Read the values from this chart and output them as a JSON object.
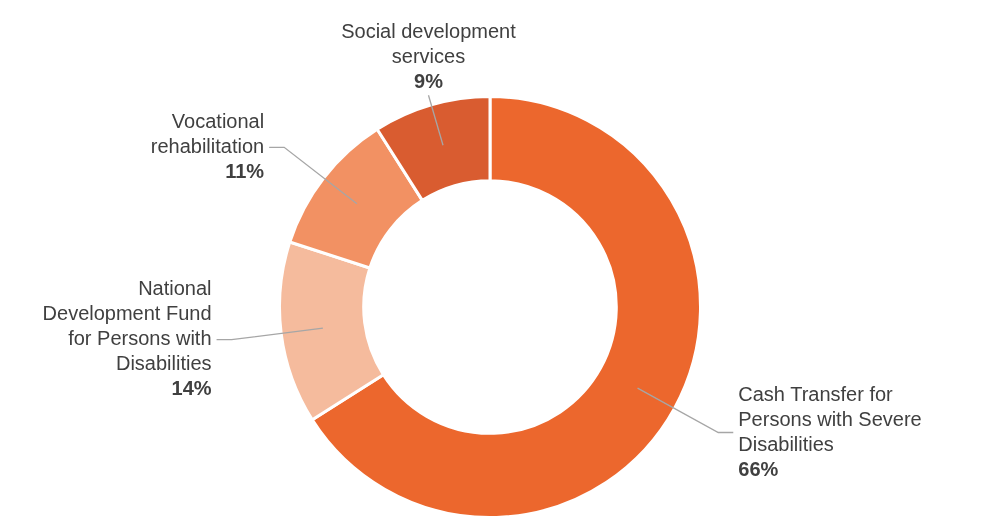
{
  "chart_data": {
    "type": "donut",
    "categories": [
      "Cash Transfer for Persons with Severe Disabilities",
      "National Development Fund for Persons with Disabilities",
      "Vocational rehabilitation",
      "Social development services"
    ],
    "values": [
      66,
      14,
      11,
      9
    ],
    "colors": [
      "#ec672d",
      "#f5bb9d",
      "#f29163",
      "#d95c30"
    ],
    "value_labels": [
      "66%",
      "14%",
      "11%",
      "9%"
    ]
  }
}
